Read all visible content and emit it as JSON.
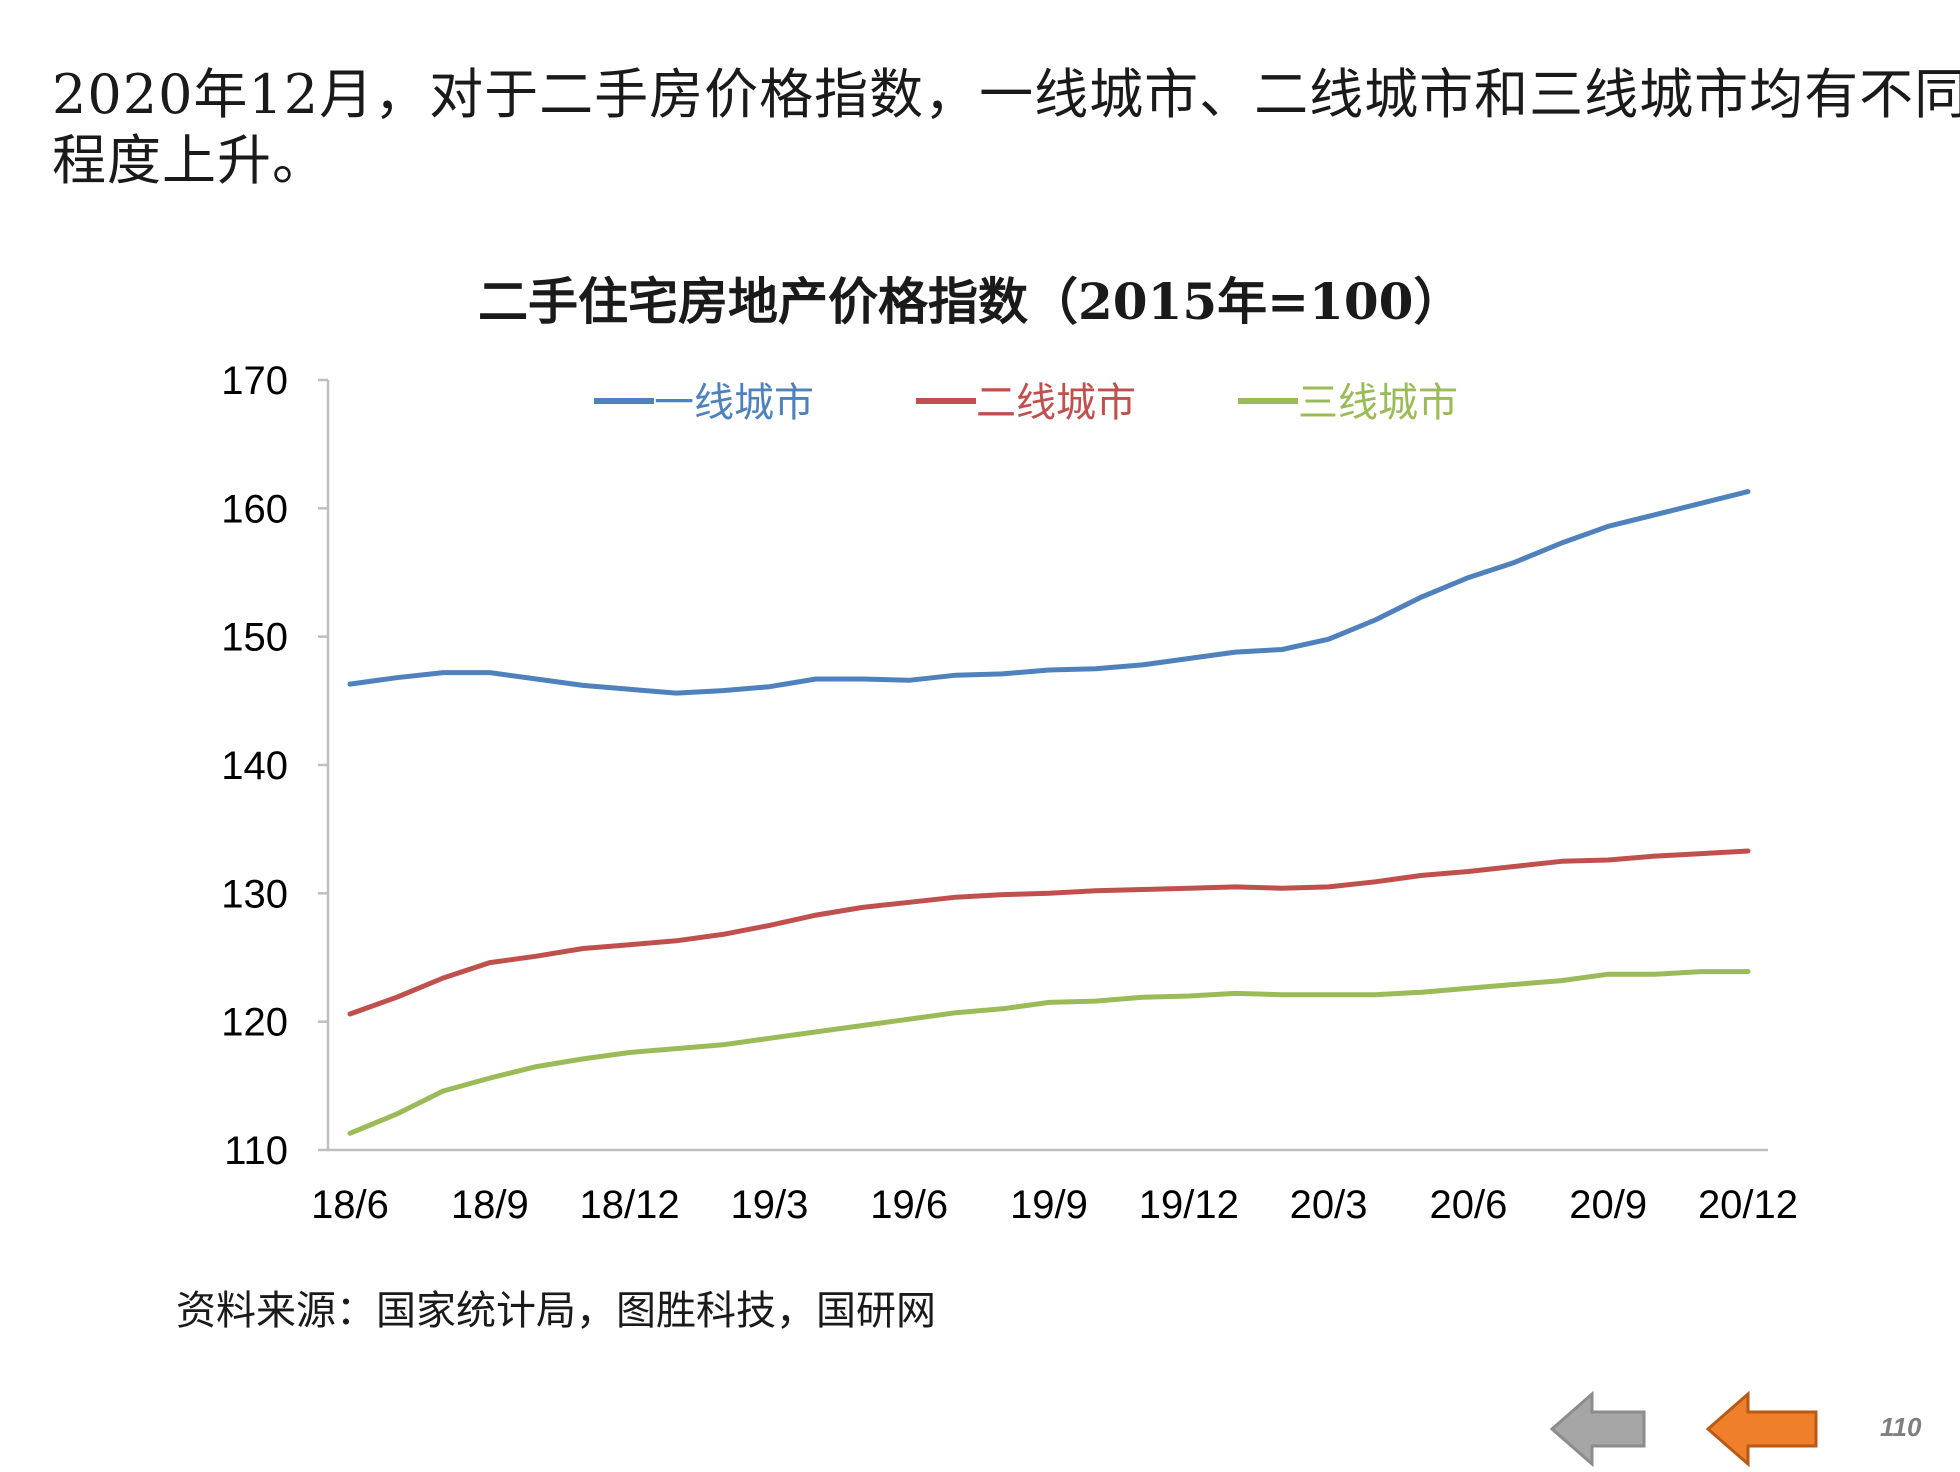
{
  "intro": {
    "line1": "2020年12月，对于二手房价格指数，一线城市、二线城市和三线城市均有不同",
    "line2": "程度上升。"
  },
  "source_note": "资料来源：国家统计局，图胜科技，国研网",
  "page_number": "110",
  "navigation": {
    "prev_icon": "arrow-left-gray-icon",
    "next_icon": "arrow-left-orange-icon",
    "prev_color": "#a6a6a6",
    "next_color": "#f07f2c"
  },
  "chart_data": {
    "type": "line",
    "title": "二手住宅房地产价格指数（2015年=100）",
    "xlabel": "",
    "ylabel": "",
    "ylim": [
      110,
      170
    ],
    "yticks": [
      110,
      120,
      130,
      140,
      150,
      160,
      170
    ],
    "x_tick_labels": [
      "18/6",
      "18/9",
      "18/12",
      "19/3",
      "19/6",
      "19/9",
      "19/12",
      "20/3",
      "20/6",
      "20/9",
      "20/12"
    ],
    "categories": [
      "18/6",
      "18/7",
      "18/8",
      "18/9",
      "18/10",
      "18/11",
      "18/12",
      "19/1",
      "19/2",
      "19/3",
      "19/4",
      "19/5",
      "19/6",
      "19/7",
      "19/8",
      "19/9",
      "19/10",
      "19/11",
      "19/12",
      "20/1",
      "20/2",
      "20/3",
      "20/4",
      "20/5",
      "20/6",
      "20/7",
      "20/8",
      "20/9",
      "20/10",
      "20/11",
      "20/12"
    ],
    "legend_position": "top",
    "grid": false,
    "series": [
      {
        "name": "一线城市",
        "color": "#4f81bd",
        "values": [
          146.3,
          146.8,
          147.2,
          147.2,
          146.7,
          146.2,
          145.9,
          145.6,
          145.8,
          146.1,
          146.7,
          146.7,
          146.6,
          147.0,
          147.1,
          147.4,
          147.5,
          147.8,
          148.3,
          148.8,
          149.0,
          149.8,
          151.3,
          153.1,
          154.6,
          155.8,
          157.3,
          158.6,
          159.5,
          160.4,
          161.3
        ]
      },
      {
        "name": "二线城市",
        "color": "#c0504d",
        "values": [
          120.6,
          121.9,
          123.4,
          124.6,
          125.1,
          125.7,
          126.0,
          126.3,
          126.8,
          127.5,
          128.3,
          128.9,
          129.3,
          129.7,
          129.9,
          130.0,
          130.2,
          130.3,
          130.4,
          130.5,
          130.4,
          130.5,
          130.9,
          131.4,
          131.7,
          132.1,
          132.5,
          132.6,
          132.9,
          133.1,
          133.3
        ]
      },
      {
        "name": "三线城市",
        "color": "#9bbb59",
        "values": [
          111.3,
          112.8,
          114.6,
          115.6,
          116.5,
          117.1,
          117.6,
          117.9,
          118.2,
          118.7,
          119.2,
          119.7,
          120.2,
          120.7,
          121.0,
          121.5,
          121.6,
          121.9,
          122.0,
          122.2,
          122.1,
          122.1,
          122.1,
          122.3,
          122.6,
          122.9,
          123.2,
          123.7,
          123.7,
          123.9,
          123.9
        ]
      }
    ]
  }
}
